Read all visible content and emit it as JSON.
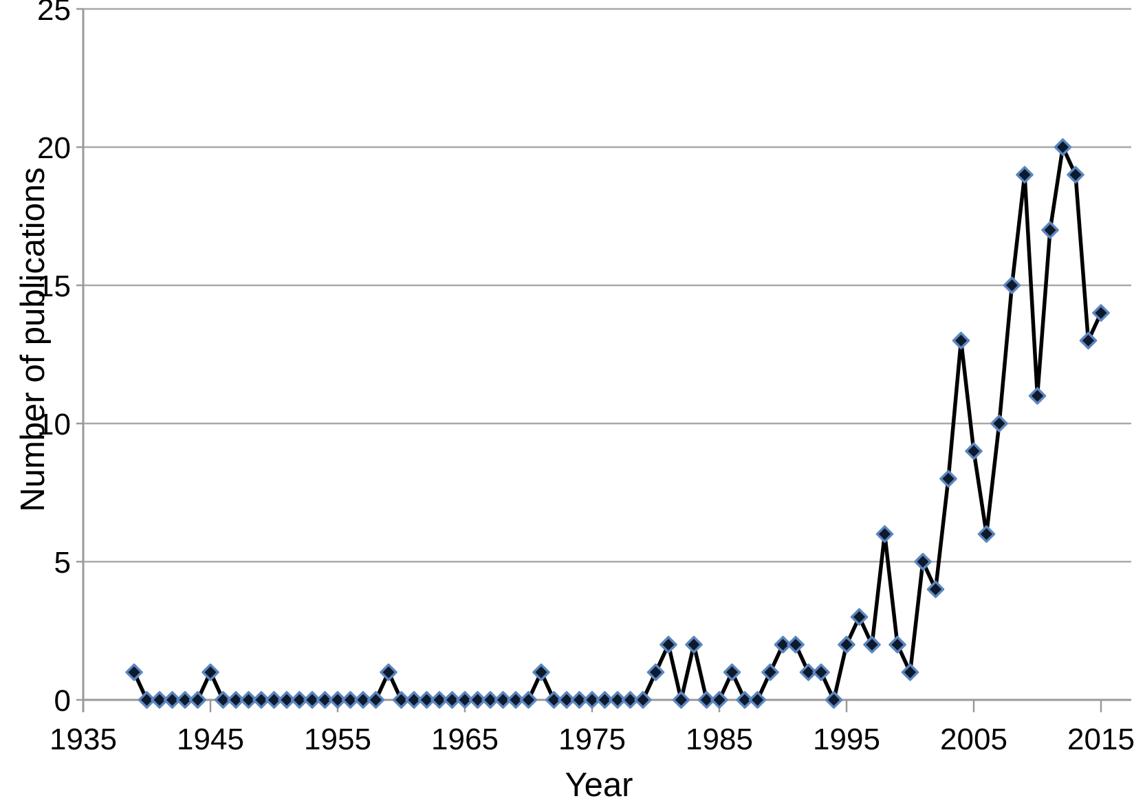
{
  "chart_data": {
    "type": "line",
    "title": "",
    "xlabel": "Year",
    "ylabel": "Number of publications",
    "x": [
      1939,
      1940,
      1941,
      1942,
      1943,
      1944,
      1945,
      1946,
      1947,
      1948,
      1949,
      1950,
      1951,
      1952,
      1953,
      1954,
      1955,
      1956,
      1957,
      1958,
      1959,
      1960,
      1961,
      1962,
      1963,
      1964,
      1965,
      1966,
      1967,
      1968,
      1969,
      1970,
      1971,
      1972,
      1973,
      1974,
      1975,
      1976,
      1977,
      1978,
      1979,
      1980,
      1981,
      1982,
      1983,
      1984,
      1985,
      1986,
      1987,
      1988,
      1989,
      1990,
      1991,
      1992,
      1993,
      1994,
      1995,
      1996,
      1997,
      1998,
      1999,
      2000,
      2001,
      2002,
      2003,
      2004,
      2005,
      2006,
      2007,
      2008,
      2009,
      2010,
      2011,
      2012,
      2013,
      2014,
      2015
    ],
    "values": [
      1,
      0,
      0,
      0,
      0,
      0,
      1,
      0,
      0,
      0,
      0,
      0,
      0,
      0,
      0,
      0,
      0,
      0,
      0,
      0,
      1,
      0,
      0,
      0,
      0,
      0,
      0,
      0,
      0,
      0,
      0,
      0,
      1,
      0,
      0,
      0,
      0,
      0,
      0,
      0,
      0,
      1,
      2,
      0,
      2,
      0,
      0,
      1,
      0,
      0,
      1,
      2,
      2,
      1,
      1,
      0,
      2,
      3,
      2,
      6,
      2,
      1,
      5,
      4,
      8,
      13,
      9,
      6,
      10,
      15,
      19,
      11,
      17,
      20,
      19,
      13,
      14
    ],
    "xlim": [
      1935,
      2015
    ],
    "ylim": [
      0,
      25
    ],
    "x_ticks": [
      1935,
      1945,
      1955,
      1965,
      1975,
      1985,
      1995,
      2005,
      2015
    ],
    "y_ticks": [
      0,
      5,
      10,
      15,
      20,
      25
    ],
    "grid": "horizontal",
    "legend": "none",
    "line_color": "#000000",
    "marker": "diamond",
    "marker_fill": "#0d1a2e",
    "marker_stroke": "#5d86bd",
    "gridline_color": "#a8a8a8",
    "axis_color": "#9a9a9a",
    "text_color": "#000000",
    "background": "#ffffff"
  }
}
